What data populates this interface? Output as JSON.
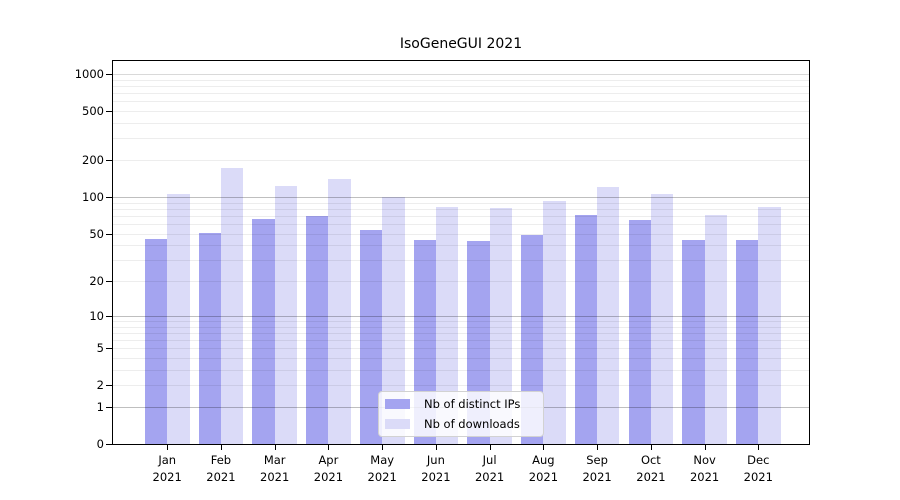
{
  "chart_data": {
    "type": "bar",
    "title": "IsoGeneGUI 2021",
    "categories": [
      {
        "line1": "Jan",
        "line2": "2021"
      },
      {
        "line1": "Feb",
        "line2": "2021"
      },
      {
        "line1": "Mar",
        "line2": "2021"
      },
      {
        "line1": "Apr",
        "line2": "2021"
      },
      {
        "line1": "May",
        "line2": "2021"
      },
      {
        "line1": "Jun",
        "line2": "2021"
      },
      {
        "line1": "Jul",
        "line2": "2021"
      },
      {
        "line1": "Aug",
        "line2": "2021"
      },
      {
        "line1": "Sep",
        "line2": "2021"
      },
      {
        "line1": "Oct",
        "line2": "2021"
      },
      {
        "line1": "Nov",
        "line2": "2021"
      },
      {
        "line1": "Dec",
        "line2": "2021"
      }
    ],
    "series": [
      {
        "name": "Nb of distinct IPs",
        "color": "#a4a4f0",
        "values": [
          45,
          50,
          66,
          70,
          53,
          44,
          43,
          48,
          71,
          65,
          44,
          44
        ]
      },
      {
        "name": "Nb of downloads",
        "color": "#dbdbf8",
        "values": [
          105,
          170,
          123,
          140,
          100,
          82,
          81,
          92,
          119,
          105,
          71,
          82
        ]
      }
    ],
    "y_ticks": [
      0,
      1,
      2,
      5,
      10,
      20,
      50,
      100,
      200,
      500,
      1000
    ],
    "y_major_gridlines": [
      1,
      10,
      100
    ],
    "y_mid_gridlines": [
      1000
    ],
    "y_minor_gridlines": [
      2,
      3,
      4,
      5,
      6,
      7,
      8,
      9,
      20,
      30,
      40,
      50,
      60,
      70,
      80,
      90,
      200,
      300,
      400,
      500,
      600,
      700,
      800,
      900
    ],
    "scale": "log10(value+1)",
    "ylim": [
      0,
      1280
    ],
    "grid": "both",
    "legend_position": "lower center",
    "xlabel": "",
    "ylabel": ""
  }
}
